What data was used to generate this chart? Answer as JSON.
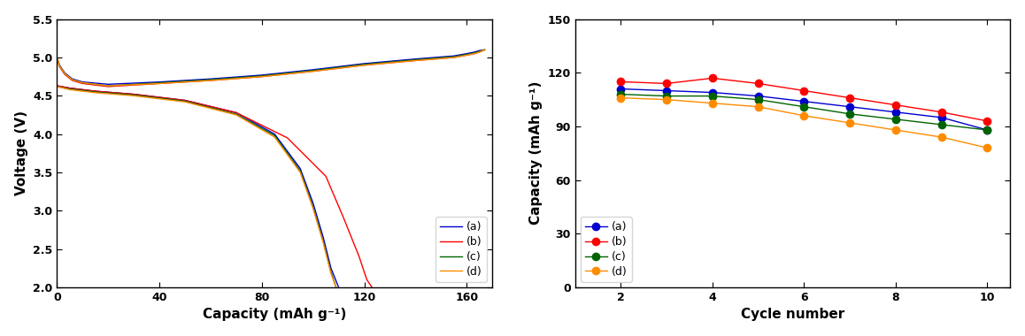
{
  "plot1": {
    "xlabel": "Capacity (mAh g⁻¹)",
    "ylabel": "Voltage (V)",
    "xlim": [
      0,
      170
    ],
    "ylim": [
      2.0,
      5.5
    ],
    "yticks": [
      2.0,
      2.5,
      3.0,
      3.5,
      4.0,
      4.5,
      5.0,
      5.5
    ],
    "xticks": [
      0,
      40,
      80,
      120,
      160
    ],
    "colors": [
      "#0000cd",
      "#ff0000",
      "#006400",
      "#ff8c00"
    ],
    "labels": [
      "(a)",
      "(b)",
      "(c)",
      "(d)"
    ],
    "charge_curves": {
      "a": {
        "x": [
          0,
          1,
          3,
          6,
          10,
          20,
          40,
          60,
          80,
          100,
          120,
          140,
          155,
          160,
          163,
          165,
          167
        ],
        "y": [
          5.0,
          4.9,
          4.8,
          4.72,
          4.68,
          4.65,
          4.68,
          4.72,
          4.77,
          4.84,
          4.92,
          4.98,
          5.02,
          5.05,
          5.07,
          5.09,
          5.1
        ]
      },
      "b": {
        "x": [
          0,
          1,
          3,
          6,
          10,
          20,
          40,
          60,
          80,
          100,
          120,
          140,
          155,
          160,
          163,
          165,
          167
        ],
        "y": [
          5.0,
          4.88,
          4.78,
          4.7,
          4.66,
          4.62,
          4.66,
          4.7,
          4.75,
          4.82,
          4.9,
          4.96,
          5.0,
          5.03,
          5.05,
          5.07,
          5.1
        ]
      },
      "c": {
        "x": [
          0,
          1,
          3,
          6,
          10,
          20,
          40,
          60,
          80,
          100,
          120,
          140,
          155,
          160,
          163,
          165,
          167
        ],
        "y": [
          5.0,
          4.89,
          4.79,
          4.71,
          4.67,
          4.63,
          4.67,
          4.71,
          4.76,
          4.83,
          4.91,
          4.97,
          5.01,
          5.04,
          5.06,
          5.08,
          5.1
        ]
      },
      "d": {
        "x": [
          0,
          1,
          3,
          6,
          10,
          20,
          40,
          60,
          80,
          100,
          120,
          140,
          155,
          160,
          163,
          165,
          167
        ],
        "y": [
          5.0,
          4.89,
          4.79,
          4.71,
          4.67,
          4.63,
          4.66,
          4.7,
          4.75,
          4.82,
          4.9,
          4.96,
          5.0,
          5.03,
          5.05,
          5.07,
          5.1
        ]
      }
    },
    "discharge_curves": {
      "a": {
        "x": [
          0,
          5,
          15,
          30,
          50,
          70,
          85,
          95,
          100,
          104,
          107,
          110
        ],
        "y": [
          4.63,
          4.6,
          4.56,
          4.52,
          4.44,
          4.28,
          4.0,
          3.55,
          3.1,
          2.65,
          2.25,
          2.0
        ]
      },
      "b": {
        "x": [
          0,
          5,
          15,
          30,
          50,
          70,
          90,
          105,
          112,
          118,
          121,
          123
        ],
        "y": [
          4.63,
          4.6,
          4.56,
          4.52,
          4.44,
          4.28,
          3.95,
          3.45,
          2.9,
          2.4,
          2.1,
          2.0
        ]
      },
      "c": {
        "x": [
          0,
          5,
          15,
          30,
          50,
          70,
          85,
          95,
          100,
          104,
          107,
          109
        ],
        "y": [
          4.62,
          4.59,
          4.55,
          4.51,
          4.43,
          4.26,
          3.98,
          3.52,
          3.05,
          2.6,
          2.2,
          2.0
        ]
      },
      "d": {
        "x": [
          0,
          5,
          15,
          30,
          50,
          70,
          85,
          95,
          100,
          104,
          107,
          109
        ],
        "y": [
          4.62,
          4.58,
          4.54,
          4.5,
          4.42,
          4.25,
          3.96,
          3.5,
          3.03,
          2.58,
          2.18,
          2.0
        ]
      }
    }
  },
  "plot2": {
    "xlabel": "Cycle number",
    "ylabel": "Capacity (mAh g⁻¹)",
    "xlim": [
      1,
      10.5
    ],
    "ylim": [
      0,
      150
    ],
    "xticks": [
      2,
      4,
      6,
      8,
      10
    ],
    "yticks": [
      0,
      30,
      60,
      90,
      120,
      150
    ],
    "colors": [
      "#0000cd",
      "#ff0000",
      "#006400",
      "#ff8c00"
    ],
    "labels": [
      "(a)",
      "(b)",
      "(c)",
      "(d)"
    ],
    "series": {
      "a": {
        "x": [
          2,
          3,
          4,
          5,
          6,
          7,
          8,
          9,
          10
        ],
        "y": [
          111,
          110,
          109,
          107,
          104,
          101,
          98,
          95,
          88
        ]
      },
      "b": {
        "x": [
          2,
          3,
          4,
          5,
          6,
          7,
          8,
          9,
          10
        ],
        "y": [
          115,
          114,
          117,
          114,
          110,
          106,
          102,
          98,
          93
        ]
      },
      "c": {
        "x": [
          2,
          3,
          4,
          5,
          6,
          7,
          8,
          9,
          10
        ],
        "y": [
          108,
          107,
          107,
          105,
          101,
          97,
          94,
          91,
          88
        ]
      },
      "d": {
        "x": [
          2,
          3,
          4,
          5,
          6,
          7,
          8,
          9,
          10
        ],
        "y": [
          106,
          105,
          103,
          101,
          96,
          92,
          88,
          84,
          78
        ]
      }
    }
  }
}
